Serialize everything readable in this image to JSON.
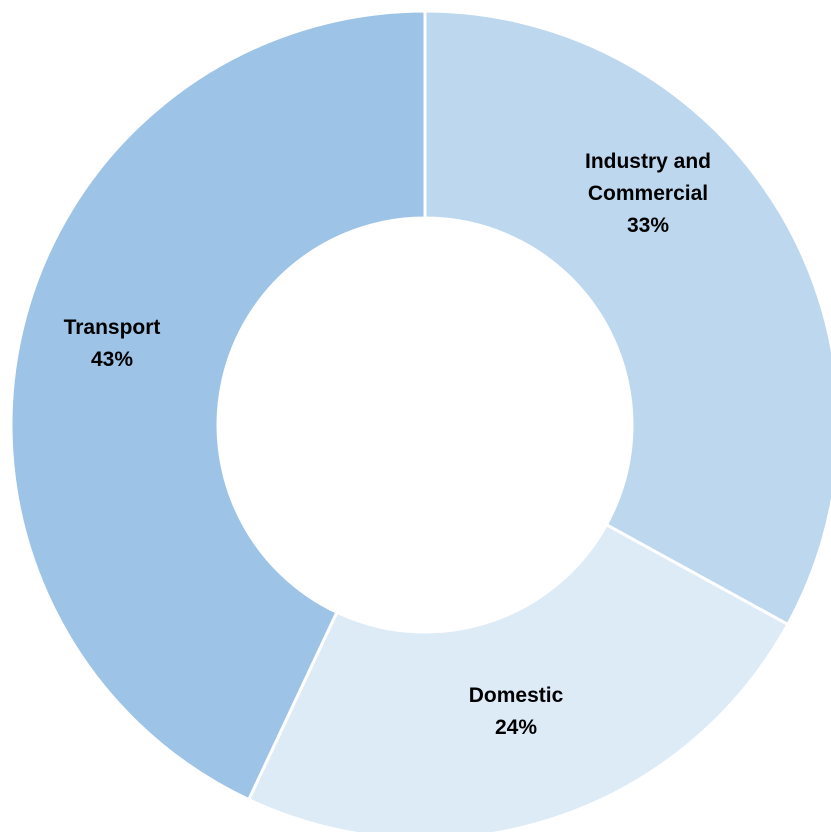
{
  "chart_data": {
    "type": "pie",
    "variant": "donut",
    "title": "",
    "series": [
      {
        "slices": [
          {
            "label_lines": [
              "Industry and",
              "Commercial"
            ],
            "value": 33,
            "value_label": "33%",
            "color": "#bdd7ee"
          },
          {
            "label_lines": [
              "Domestic"
            ],
            "value": 24,
            "value_label": "24%",
            "color": "#ddebf7"
          },
          {
            "label_lines": [
              "Transport"
            ],
            "value": 43,
            "value_label": "43%",
            "color": "#9dc3e6"
          }
        ]
      }
    ],
    "legend": "none",
    "start_angle_deg": 0,
    "direction": "clockwise"
  }
}
